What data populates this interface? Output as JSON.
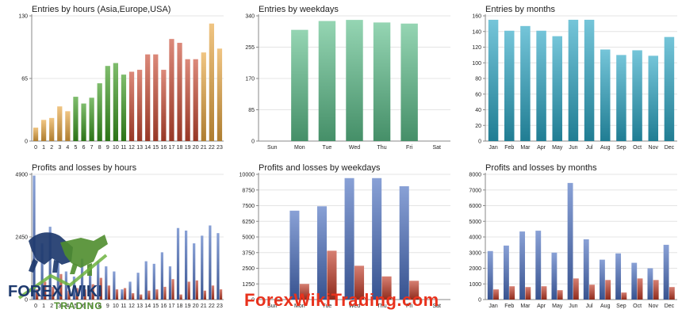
{
  "chart_data": [
    {
      "id": "entries-hours",
      "type": "bar",
      "title": "Entries by hours (Asia,Europe,USA)",
      "yticks": [
        0,
        65,
        130
      ],
      "ylim": [
        0,
        130
      ],
      "categories": [
        "0",
        "1",
        "2",
        "3",
        "4",
        "5",
        "6",
        "7",
        "8",
        "9",
        "10",
        "11",
        "12",
        "13",
        "14",
        "15",
        "16",
        "17",
        "18",
        "19",
        "20",
        "21",
        "22",
        "23"
      ],
      "series": [
        {
          "values": [
            14,
            22,
            24,
            36,
            31,
            46,
            39,
            45,
            60,
            78,
            81,
            69,
            72,
            74,
            90,
            90,
            74,
            106,
            102,
            85,
            85,
            92,
            122,
            96
          ],
          "colors": [
            "#e8a640",
            "#e8a640",
            "#e8a640",
            "#e8a640",
            "#e8a640",
            "#3a9a1e",
            "#3a9a1e",
            "#3a9a1e",
            "#3a9a1e",
            "#3a9a1e",
            "#3a9a1e",
            "#3a9a1e",
            "#c94a32",
            "#c94a32",
            "#c94a32",
            "#c94a32",
            "#c94a32",
            "#c94a32",
            "#c94a32",
            "#c94a32",
            "#c94a32",
            "#e8a640",
            "#e8a640",
            "#e8a640"
          ]
        }
      ]
    },
    {
      "id": "entries-weekdays",
      "type": "bar",
      "title": "Entries by weekdays",
      "yticks": [
        0,
        85,
        170,
        255,
        340
      ],
      "ylim": [
        0,
        340
      ],
      "categories": [
        "Sun",
        "Mon",
        "Tue",
        "Wed",
        "Thu",
        "Fri",
        "Sat"
      ],
      "series": [
        {
          "values": [
            0,
            302,
            326,
            329,
            322,
            319,
            0
          ],
          "color": "#5cbf8a"
        }
      ]
    },
    {
      "id": "entries-months",
      "type": "bar",
      "title": "Entries by months",
      "yticks": [
        0,
        20,
        40,
        60,
        80,
        100,
        120,
        140,
        160
      ],
      "ylim": [
        0,
        160
      ],
      "categories": [
        "Jan",
        "Feb",
        "Mar",
        "Apr",
        "May",
        "Jun",
        "Jul",
        "Aug",
        "Sep",
        "Oct",
        "Nov",
        "Dec"
      ],
      "series": [
        {
          "values": [
            155,
            141,
            147,
            141,
            134,
            155,
            155,
            117,
            110,
            116,
            109,
            133
          ],
          "color": "#2aa6c4"
        }
      ]
    },
    {
      "id": "pl-hours",
      "type": "bar",
      "title": "Profits and losses by hours",
      "yticks": [
        0,
        2450,
        4900
      ],
      "ylim": [
        0,
        4900
      ],
      "categories": [
        "0",
        "1",
        "2",
        "3",
        "4",
        "5",
        "6",
        "7",
        "8",
        "9",
        "10",
        "11",
        "12",
        "13",
        "14",
        "15",
        "16",
        "17",
        "18",
        "19",
        "20",
        "21",
        "22",
        "23"
      ],
      "series": [
        {
          "values": [
            4850,
            2200,
            2850,
            1500,
            1100,
            900,
            1600,
            1250,
            1500,
            1300,
            1100,
            400,
            700,
            1050,
            1500,
            1400,
            1850,
            1300,
            2800,
            2700,
            2200,
            2500,
            2900,
            2600
          ],
          "color": "#4a6fc0"
        },
        {
          "values": [
            400,
            700,
            500,
            1000,
            350,
            450,
            400,
            600,
            850,
            550,
            400,
            450,
            250,
            200,
            350,
            400,
            500,
            800,
            200,
            700,
            750,
            350,
            550,
            400
          ],
          "color": "#c03a26"
        }
      ]
    },
    {
      "id": "pl-weekdays",
      "type": "bar",
      "title": "Profits and losses by weekdays",
      "yticks": [
        0,
        1250,
        2500,
        3750,
        5000,
        6250,
        7500,
        8750,
        10000
      ],
      "ylim": [
        0,
        10000
      ],
      "categories": [
        "Sun",
        "Mon",
        "Tue",
        "Wed",
        "Thu",
        "Fri",
        "Sat"
      ],
      "series": [
        {
          "values": [
            0,
            7100,
            7450,
            9700,
            9700,
            9050,
            0
          ],
          "color": "#4a6fc0"
        },
        {
          "values": [
            0,
            1250,
            3900,
            2700,
            1850,
            1500,
            0
          ],
          "color": "#c03a26"
        }
      ]
    },
    {
      "id": "pl-months",
      "type": "bar",
      "title": "Profits and losses by months",
      "yticks": [
        0,
        1000,
        2000,
        3000,
        4000,
        5000,
        6000,
        7000,
        8000
      ],
      "ylim": [
        0,
        8000
      ],
      "categories": [
        "Jan",
        "Feb",
        "Mar",
        "Apr",
        "May",
        "Jun",
        "Jul",
        "Aug",
        "Sep",
        "Oct",
        "Nov",
        "Dec"
      ],
      "series": [
        {
          "values": [
            3100,
            3450,
            4350,
            4400,
            3000,
            7450,
            3850,
            2550,
            2950,
            2350,
            2000,
            3500
          ],
          "color": "#4a6fc0"
        },
        {
          "values": [
            650,
            850,
            800,
            850,
            600,
            1350,
            950,
            1250,
            450,
            1350,
            1250,
            800
          ],
          "color": "#c03a26"
        }
      ]
    }
  ],
  "watermark": {
    "site": "ForexWikiTrading.com",
    "logo_text_main": "FOREX WIKI",
    "logo_text_sub": "TRADING"
  }
}
